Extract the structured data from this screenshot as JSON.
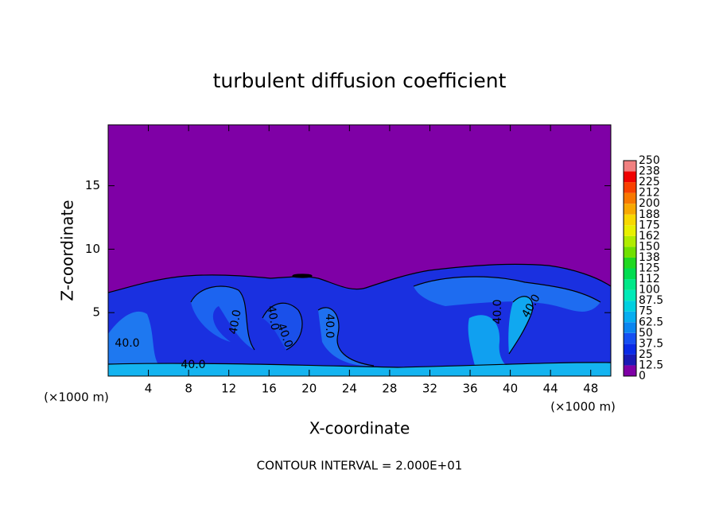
{
  "chart_data": {
    "type": "contour",
    "title": "turbulent diffusion coefficient",
    "x_label": "X-coordinate",
    "y_label": "Z-coordinate",
    "x_unit": "(×1000 m)",
    "y_unit": "(×1000 m)",
    "xlim": [
      0,
      50
    ],
    "ylim": [
      0,
      19.8
    ],
    "xticks": [
      4,
      8,
      12,
      16,
      20,
      24,
      28,
      32,
      36,
      40,
      44,
      48
    ],
    "yticks": [
      5,
      10,
      15
    ],
    "contour_labels": [
      "40.0",
      "40.0",
      "40.0",
      "40.0",
      "40.0",
      "40.0",
      "40.0",
      "40.0"
    ],
    "footer": "CONTOUR INTERVAL = 2.000E+01",
    "colorbar": {
      "levels": [
        0,
        12.5,
        25,
        37.5,
        50,
        62.5,
        75,
        87.5,
        100,
        112,
        125,
        138,
        150,
        162,
        175,
        188,
        200,
        212,
        225,
        238,
        250
      ],
      "colors": [
        "#7f00a6",
        "#1a1ab4",
        "#0a2ae6",
        "#1650f2",
        "#0c86f0",
        "#08aef0",
        "#00d0e0",
        "#00eab8",
        "#00e888",
        "#00dc50",
        "#20d820",
        "#70e000",
        "#b0ec00",
        "#e8f000",
        "#f8d800",
        "#f8a800",
        "#f87800",
        "#f84000",
        "#f00000",
        "#f08080"
      ]
    }
  }
}
